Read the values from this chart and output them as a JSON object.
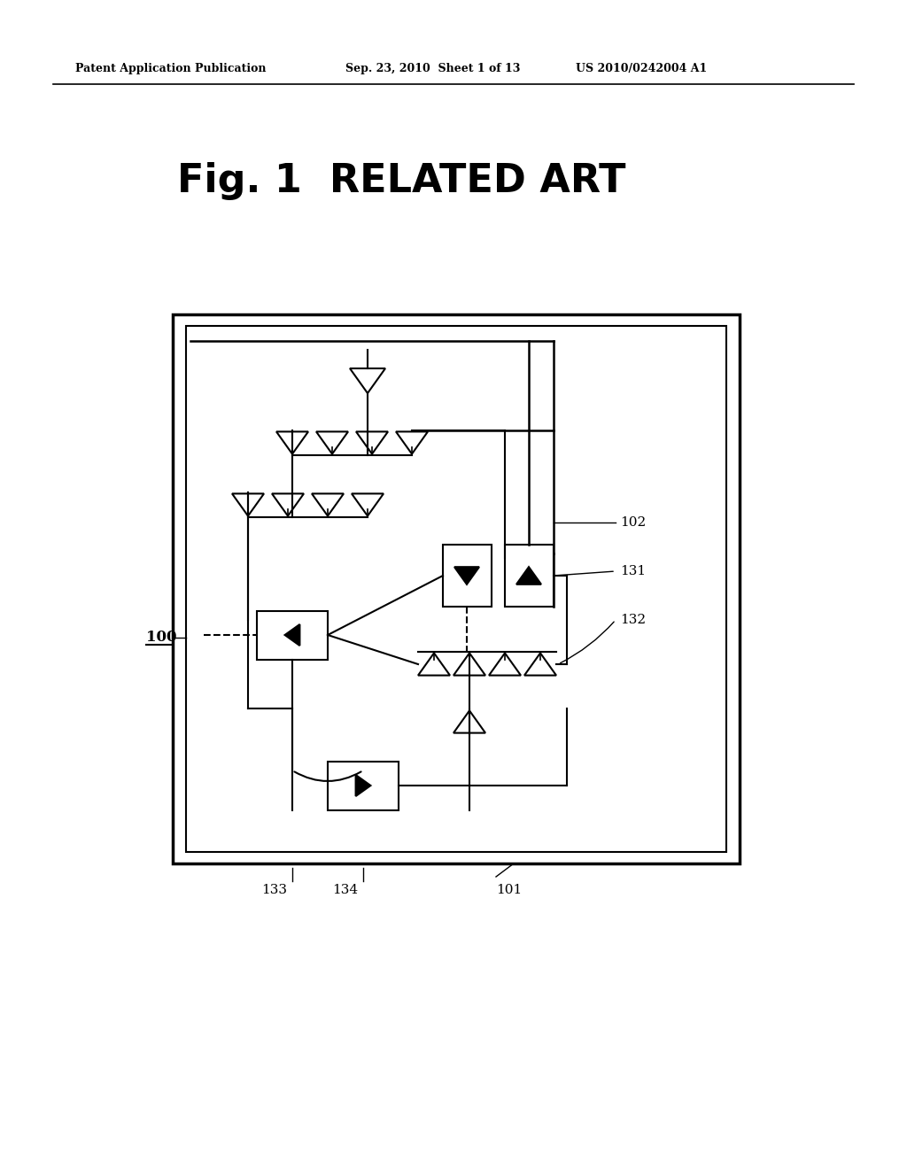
{
  "bg_color": "#ffffff",
  "header_left": "Patent Application Publication",
  "header_mid": "Sep. 23, 2010  Sheet 1 of 13",
  "header_right": "US 2010/0242004 A1",
  "fig_title": "Fig. 1  RELATED ART",
  "label_100": "100",
  "label_101": "101",
  "label_102": "102",
  "label_131": "131",
  "label_132": "132",
  "label_133": "133",
  "label_134": "134"
}
